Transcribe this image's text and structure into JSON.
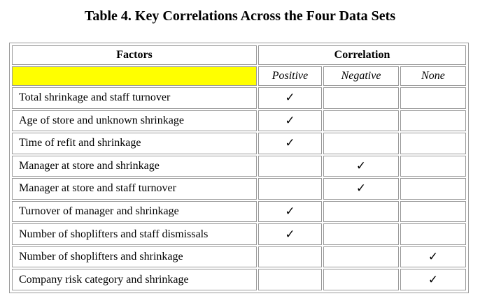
{
  "title": "Table 4. Key Correlations Across the Four Data Sets",
  "table": {
    "headers": {
      "factors": "Factors",
      "correlation": "Correlation"
    },
    "subheaders": [
      "Positive",
      "Negative",
      "None"
    ],
    "highlight_color": "#ffff00",
    "check_mark": "✓",
    "rows": [
      {
        "factor": "Total shrinkage and staff turnover",
        "correlation": "Positive"
      },
      {
        "factor": "Age of store and unknown shrinkage",
        "correlation": "Positive"
      },
      {
        "factor": "Time of refit and shrinkage",
        "correlation": "Positive"
      },
      {
        "factor": "Manager at store and shrinkage",
        "correlation": "Negative"
      },
      {
        "factor": "Manager at store and staff turnover",
        "correlation": "Negative"
      },
      {
        "factor": "Turnover of manager and shrinkage",
        "correlation": "Positive"
      },
      {
        "factor": "Number of shoplifters and staff dismissals",
        "correlation": "Positive"
      },
      {
        "factor": "Number of shoplifters and shrinkage",
        "correlation": "None"
      },
      {
        "factor": "Company risk category and shrinkage",
        "correlation": "None"
      }
    ]
  }
}
